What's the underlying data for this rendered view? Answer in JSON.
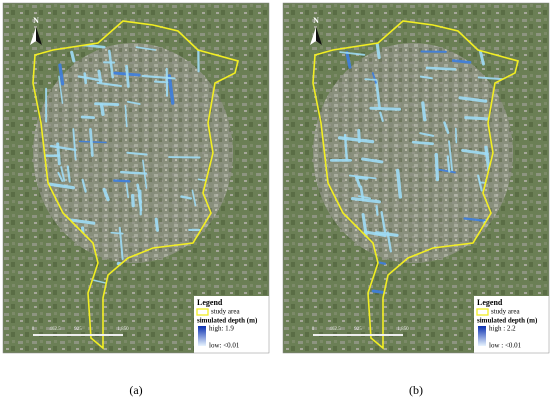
{
  "panels": [
    {
      "caption": "(a)",
      "north": "N",
      "legend": {
        "title": "Legend",
        "study_area": "study area",
        "depth_title": "simulated depth (m)",
        "high": "high: 1.9",
        "low": "low: <0.01"
      },
      "scale_bar": [
        "0",
        "462.5",
        "925",
        "1,850"
      ]
    },
    {
      "caption": "(b)",
      "north": "N",
      "legend": {
        "title": "Legend",
        "study_area": "study area",
        "depth_title": "simulated depth (m)",
        "high": "high : 2.2",
        "low": "low : <0.01"
      },
      "scale_bar": [
        "0",
        "462.5",
        "925",
        "1,850"
      ]
    }
  ]
}
